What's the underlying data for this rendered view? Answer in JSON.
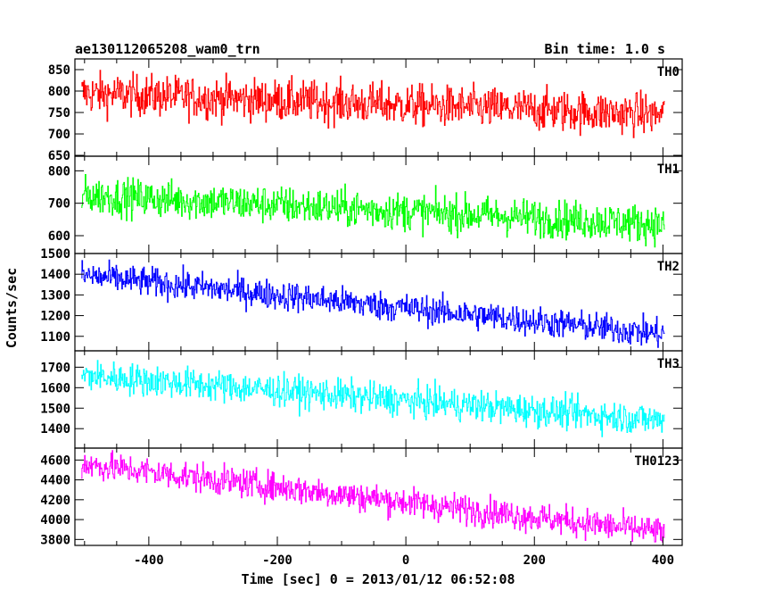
{
  "chart_data": {
    "type": "line",
    "title_left": "ae130112065208_wam0_trn",
    "title_right": "Bin time: 1.0 s",
    "xlabel": "Time [sec] 0 = 2013/01/12 06:52:08",
    "ylabel": "Counts/sec",
    "xlim": [
      -515,
      430
    ],
    "x_ticks": [
      -400,
      -200,
      0,
      200,
      400
    ],
    "x_range": [
      -505,
      402
    ],
    "bin_time": 1.0,
    "panels": [
      {
        "name": "TH0",
        "color": "#ff0000",
        "ylim": [
          648,
          875
        ],
        "y_ticks": [
          650,
          700,
          750,
          800,
          850
        ],
        "trend": [
          {
            "x": -505,
            "y": 795
          },
          {
            "x": 402,
            "y": 745
          }
        ],
        "noise_amplitude": 75
      },
      {
        "name": "TH1",
        "color": "#00ff00",
        "ylim": [
          545,
          845
        ],
        "y_ticks": [
          600,
          700,
          800
        ],
        "trend": [
          {
            "x": -505,
            "y": 725
          },
          {
            "x": 402,
            "y": 635
          }
        ],
        "noise_amplitude": 90
      },
      {
        "name": "TH2",
        "color": "#0000ff",
        "ylim": [
          1030,
          1500
        ],
        "y_ticks": [
          1100,
          1200,
          1300,
          1400,
          1500
        ],
        "trend": [
          {
            "x": -505,
            "y": 1395
          },
          {
            "x": 402,
            "y": 1110
          }
        ],
        "noise_amplitude": 110
      },
      {
        "name": "TH3",
        "color": "#00ffff",
        "ylim": [
          1305,
          1780
        ],
        "y_ticks": [
          1400,
          1500,
          1600,
          1700
        ],
        "trend": [
          {
            "x": -505,
            "y": 1660
          },
          {
            "x": 402,
            "y": 1440
          }
        ],
        "noise_amplitude": 120
      },
      {
        "name": "TH0123",
        "color": "#ff00ff",
        "ylim": [
          3740,
          4720
        ],
        "y_ticks": [
          3800,
          4000,
          4200,
          4400,
          4600
        ],
        "trend": [
          {
            "x": -505,
            "y": 4560
          },
          {
            "x": 402,
            "y": 3870
          }
        ],
        "noise_amplitude": 230
      }
    ]
  }
}
